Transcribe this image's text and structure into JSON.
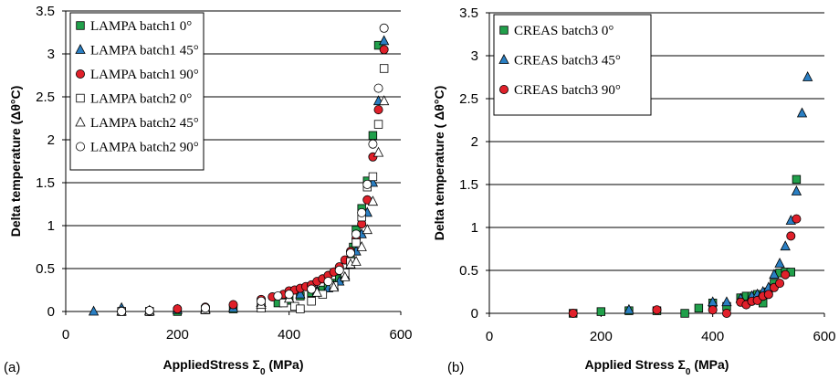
{
  "chart_data": [
    {
      "panel_label": "(a)",
      "type": "scatter",
      "xlabel_parts": [
        "AppliedStress  ",
        "Σ",
        "0",
        " (MPa)"
      ],
      "ylabel_parts": [
        "Delta temperature (",
        "Δθ",
        "°C)"
      ],
      "xlim": [
        0,
        600
      ],
      "ylim": [
        0,
        3.5
      ],
      "xticks": [
        "0",
        "200",
        "400",
        "600"
      ],
      "yticks": [
        "0",
        "0.5",
        "1",
        "1.5",
        "2",
        "2.5",
        "3",
        "3.5"
      ],
      "grid": "horizontal",
      "legend_position": "top-left",
      "series": [
        {
          "name": "LAMPA batch1 0°",
          "marker": "square",
          "fill": "#21a04b",
          "x": [
            100,
            150,
            200,
            250,
            300,
            350,
            380,
            400,
            420,
            440,
            460,
            470,
            480,
            490,
            500,
            510,
            515,
            520,
            530,
            540,
            550,
            560
          ],
          "y": [
            0,
            0,
            0,
            0.02,
            0.03,
            0.06,
            0.1,
            0.13,
            0.18,
            0.22,
            0.25,
            0.28,
            0.33,
            0.38,
            0.45,
            0.6,
            0.75,
            0.95,
            1.2,
            1.52,
            2.05,
            3.1
          ]
        },
        {
          "name": "LAMPA batch1 45°",
          "marker": "triangle",
          "fill": "#2a7fc3",
          "x": [
            50,
            100,
            150,
            200,
            250,
            300,
            350,
            400,
            420,
            450,
            470,
            480,
            490,
            500,
            510,
            520,
            530,
            540,
            550,
            560,
            570
          ],
          "y": [
            0,
            0.04,
            0.01,
            0.02,
            0.03,
            0.04,
            0.1,
            0.15,
            0.2,
            0.24,
            0.27,
            0.3,
            0.35,
            0.42,
            0.55,
            0.7,
            0.9,
            1.15,
            1.5,
            2.45,
            3.15
          ]
        },
        {
          "name": "LAMPA batch1 90°",
          "marker": "circle",
          "fill": "#e0202a",
          "x": [
            100,
            150,
            200,
            250,
            300,
            350,
            370,
            390,
            400,
            410,
            420,
            430,
            440,
            450,
            460,
            470,
            480,
            490,
            500,
            510,
            520,
            530,
            540,
            550,
            560,
            570
          ],
          "y": [
            0,
            0,
            0.03,
            0.05,
            0.08,
            0.14,
            0.17,
            0.2,
            0.24,
            0.25,
            0.27,
            0.29,
            0.31,
            0.35,
            0.38,
            0.42,
            0.46,
            0.52,
            0.6,
            0.7,
            0.85,
            1.02,
            1.3,
            1.8,
            2.35,
            3.05
          ]
        },
        {
          "name": "LAMPA batch2 0°",
          "marker": "square",
          "fill": "#ffffff",
          "x": [
            100,
            150,
            250,
            350,
            390,
            410,
            420,
            440,
            460,
            480,
            500,
            510,
            520,
            530,
            540,
            550,
            560,
            570
          ],
          "y": [
            0,
            0,
            0.02,
            0.04,
            0.1,
            0.06,
            0.03,
            0.12,
            0.2,
            0.3,
            0.45,
            0.58,
            0.8,
            1.1,
            1.45,
            1.57,
            2.18,
            2.83
          ]
        },
        {
          "name": "LAMPA batch2 45°",
          "marker": "triangle",
          "fill": "#ffffff",
          "x": [
            100,
            150,
            250,
            350,
            400,
            450,
            480,
            500,
            510,
            520,
            530,
            540,
            550,
            560,
            570
          ],
          "y": [
            0,
            0,
            0.02,
            0.08,
            0.15,
            0.22,
            0.28,
            0.4,
            0.55,
            0.58,
            0.75,
            0.95,
            1.28,
            1.85,
            2.45
          ]
        },
        {
          "name": "LAMPA batch2 90°",
          "marker": "circle",
          "fill": "#ffffff",
          "x": [
            100,
            150,
            250,
            350,
            380,
            400,
            440,
            470,
            490,
            510,
            520,
            530,
            540,
            550,
            560,
            570
          ],
          "y": [
            0,
            0.01,
            0.04,
            0.12,
            0.18,
            0.2,
            0.26,
            0.35,
            0.48,
            0.68,
            0.9,
            1.15,
            1.48,
            1.95,
            2.6,
            3.3
          ]
        }
      ]
    },
    {
      "panel_label": "(b)",
      "type": "scatter",
      "xlabel_parts": [
        "Applied Stress ",
        "Σ",
        "0",
        " (MPa)"
      ],
      "ylabel_parts": [
        "Delta temperature ( ",
        "Δθ",
        "°C)"
      ],
      "xlim": [
        0,
        600
      ],
      "ylim": [
        0,
        3.5
      ],
      "xticks": [
        "0",
        "200",
        "400",
        "600"
      ],
      "yticks": [
        "0",
        "0.5",
        "1",
        "1.5",
        "2",
        "2.5",
        "3",
        "3.5"
      ],
      "grid": "horizontal",
      "legend_position": "top-left",
      "series": [
        {
          "name": "CREAS batch3 0°",
          "marker": "square",
          "fill": "#21a04b",
          "x": [
            150,
            200,
            250,
            300,
            350,
            375,
            400,
            425,
            450,
            460,
            470,
            480,
            490,
            500,
            510,
            520,
            530,
            540,
            550
          ],
          "y": [
            0,
            0.02,
            0.03,
            0.03,
            0,
            0.06,
            0.12,
            0.08,
            0.18,
            0.2,
            0.2,
            0.22,
            0.12,
            0.25,
            0.35,
            0.47,
            0.48,
            0.48,
            1.56
          ]
        },
        {
          "name": "CREAS batch3 45°",
          "marker": "triangle",
          "fill": "#2a7fc3",
          "x": [
            250,
            400,
            425,
            450,
            470,
            480,
            490,
            500,
            510,
            520,
            530,
            540,
            550,
            560,
            570
          ],
          "y": [
            0.04,
            0.13,
            0.13,
            0.17,
            0.2,
            0.22,
            0.25,
            0.3,
            0.45,
            0.58,
            0.78,
            1.08,
            1.42,
            2.33,
            2.75
          ]
        },
        {
          "name": "CREAS batch3 90°",
          "marker": "circle",
          "fill": "#e0202a",
          "x": [
            150,
            300,
            400,
            425,
            450,
            460,
            470,
            480,
            490,
            500,
            510,
            520,
            530,
            540,
            550
          ],
          "y": [
            0,
            0.04,
            0.04,
            0,
            0.13,
            0.1,
            0.14,
            0.15,
            0.2,
            0.22,
            0.3,
            0.35,
            0.45,
            0.9,
            1.1
          ]
        }
      ]
    }
  ]
}
